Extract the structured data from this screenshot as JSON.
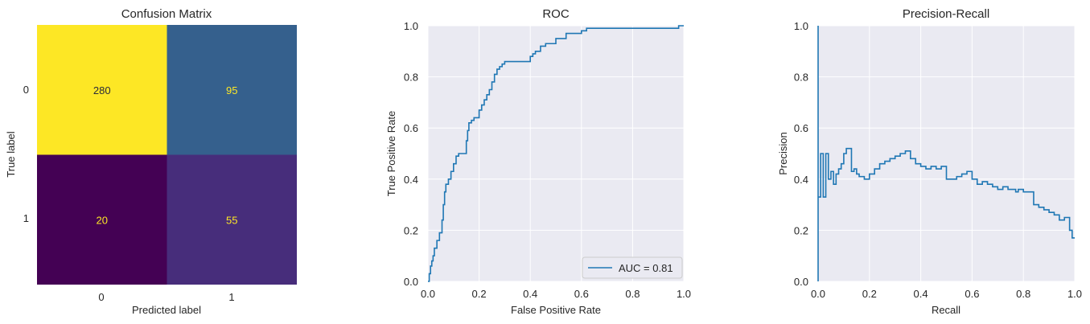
{
  "chart_data": [
    {
      "type": "heatmap",
      "title": "Confusion Matrix",
      "xlabel": "Predicted label",
      "ylabel": "True label",
      "x_tick_labels": [
        "0",
        "1"
      ],
      "y_tick_labels": [
        "0",
        "1"
      ],
      "matrix": [
        [
          280,
          95
        ],
        [
          20,
          55
        ]
      ],
      "cell_labels": [
        [
          "280",
          "95"
        ],
        [
          "20",
          "55"
        ]
      ],
      "colormap": "viridis",
      "cell_colors": [
        [
          "#fde725",
          "#35608d"
        ],
        [
          "#440154",
          "#472d7b"
        ]
      ],
      "cell_text_colors": [
        [
          "#2a2a3a",
          "#fde725"
        ],
        [
          "#fde725",
          "#fde725"
        ]
      ],
      "grid": false
    },
    {
      "type": "line",
      "title": "ROC",
      "xlabel": "False Positive Rate",
      "ylabel": "True Positive Rate",
      "xlim": [
        0,
        1
      ],
      "ylim": [
        0,
        1
      ],
      "x_ticks": [
        "0.0",
        "0.2",
        "0.4",
        "0.6",
        "0.8",
        "1.0"
      ],
      "y_ticks": [
        "0.0",
        "0.2",
        "0.4",
        "0.6",
        "0.8",
        "1.0"
      ],
      "grid": true,
      "legend_position": "lower-right",
      "series": [
        {
          "name": "AUC = 0.81",
          "color": "#1f77b4",
          "step": true,
          "x": [
            0.0,
            0.005,
            0.005,
            0.01,
            0.01,
            0.015,
            0.015,
            0.02,
            0.02,
            0.025,
            0.025,
            0.035,
            0.035,
            0.045,
            0.045,
            0.055,
            0.055,
            0.06,
            0.06,
            0.065,
            0.065,
            0.07,
            0.07,
            0.08,
            0.08,
            0.09,
            0.09,
            0.1,
            0.1,
            0.11,
            0.11,
            0.12,
            0.12,
            0.15,
            0.15,
            0.155,
            0.155,
            0.16,
            0.16,
            0.17,
            0.17,
            0.18,
            0.18,
            0.2,
            0.2,
            0.21,
            0.21,
            0.22,
            0.22,
            0.23,
            0.23,
            0.24,
            0.24,
            0.25,
            0.25,
            0.26,
            0.26,
            0.27,
            0.27,
            0.28,
            0.28,
            0.29,
            0.29,
            0.3,
            0.3,
            0.31,
            0.31,
            0.32,
            0.32,
            0.4,
            0.4,
            0.41,
            0.41,
            0.42,
            0.42,
            0.44,
            0.44,
            0.46,
            0.46,
            0.5,
            0.5,
            0.54,
            0.54,
            0.6,
            0.6,
            0.62,
            0.62,
            0.98,
            0.98,
            1.0,
            1.0
          ],
          "y": [
            0.0,
            0.0,
            0.03,
            0.03,
            0.06,
            0.06,
            0.08,
            0.08,
            0.1,
            0.1,
            0.13,
            0.13,
            0.16,
            0.16,
            0.19,
            0.19,
            0.24,
            0.24,
            0.3,
            0.3,
            0.35,
            0.35,
            0.38,
            0.38,
            0.4,
            0.4,
            0.43,
            0.43,
            0.46,
            0.46,
            0.49,
            0.49,
            0.5,
            0.5,
            0.55,
            0.55,
            0.59,
            0.59,
            0.62,
            0.62,
            0.63,
            0.63,
            0.64,
            0.64,
            0.67,
            0.67,
            0.69,
            0.69,
            0.71,
            0.71,
            0.73,
            0.73,
            0.75,
            0.75,
            0.78,
            0.78,
            0.81,
            0.81,
            0.83,
            0.83,
            0.84,
            0.84,
            0.85,
            0.85,
            0.86,
            0.86,
            0.86,
            0.86,
            0.86,
            0.86,
            0.88,
            0.88,
            0.89,
            0.89,
            0.9,
            0.9,
            0.92,
            0.92,
            0.93,
            0.93,
            0.95,
            0.95,
            0.97,
            0.97,
            0.98,
            0.98,
            0.99,
            0.99,
            1.0,
            1.0,
            1.0
          ]
        }
      ]
    },
    {
      "type": "line",
      "title": "Precision-Recall",
      "xlabel": "Recall",
      "ylabel": "Precision",
      "xlim": [
        0,
        1
      ],
      "ylim": [
        0,
        1
      ],
      "x_ticks": [
        "0.0",
        "0.2",
        "0.4",
        "0.6",
        "0.8",
        "1.0"
      ],
      "y_ticks": [
        "0.0",
        "0.2",
        "0.4",
        "0.6",
        "0.8",
        "1.0"
      ],
      "grid": true,
      "series": [
        {
          "color": "#1f77b4",
          "step": true,
          "x": [
            0.0,
            0.0,
            0.0,
            0.01,
            0.01,
            0.02,
            0.02,
            0.03,
            0.03,
            0.04,
            0.04,
            0.05,
            0.05,
            0.06,
            0.06,
            0.07,
            0.07,
            0.08,
            0.08,
            0.09,
            0.09,
            0.1,
            0.1,
            0.11,
            0.11,
            0.13,
            0.13,
            0.14,
            0.14,
            0.15,
            0.15,
            0.16,
            0.16,
            0.18,
            0.18,
            0.2,
            0.2,
            0.22,
            0.22,
            0.24,
            0.24,
            0.26,
            0.26,
            0.28,
            0.28,
            0.3,
            0.3,
            0.32,
            0.32,
            0.34,
            0.34,
            0.36,
            0.36,
            0.38,
            0.38,
            0.4,
            0.4,
            0.42,
            0.42,
            0.44,
            0.44,
            0.46,
            0.46,
            0.48,
            0.48,
            0.5,
            0.5,
            0.54,
            0.54,
            0.56,
            0.56,
            0.58,
            0.58,
            0.6,
            0.6,
            0.62,
            0.62,
            0.64,
            0.64,
            0.66,
            0.66,
            0.68,
            0.68,
            0.7,
            0.7,
            0.72,
            0.72,
            0.74,
            0.74,
            0.77,
            0.77,
            0.78,
            0.78,
            0.8,
            0.8,
            0.84,
            0.84,
            0.86,
            0.86,
            0.88,
            0.88,
            0.9,
            0.9,
            0.92,
            0.92,
            0.94,
            0.94,
            0.96,
            0.96,
            0.98,
            0.98,
            0.99,
            0.99,
            1.0
          ],
          "y": [
            0.0,
            1.0,
            0.33,
            0.33,
            0.5,
            0.5,
            0.33,
            0.33,
            0.5,
            0.5,
            0.4,
            0.4,
            0.43,
            0.43,
            0.38,
            0.38,
            0.42,
            0.42,
            0.44,
            0.44,
            0.46,
            0.46,
            0.5,
            0.5,
            0.52,
            0.52,
            0.43,
            0.43,
            0.44,
            0.44,
            0.42,
            0.42,
            0.41,
            0.41,
            0.4,
            0.4,
            0.42,
            0.42,
            0.44,
            0.44,
            0.46,
            0.46,
            0.47,
            0.47,
            0.48,
            0.48,
            0.49,
            0.49,
            0.5,
            0.5,
            0.51,
            0.51,
            0.48,
            0.48,
            0.46,
            0.46,
            0.45,
            0.45,
            0.44,
            0.44,
            0.45,
            0.45,
            0.44,
            0.44,
            0.45,
            0.45,
            0.4,
            0.4,
            0.41,
            0.41,
            0.42,
            0.42,
            0.43,
            0.43,
            0.4,
            0.4,
            0.38,
            0.38,
            0.39,
            0.39,
            0.38,
            0.38,
            0.37,
            0.37,
            0.36,
            0.36,
            0.37,
            0.37,
            0.36,
            0.36,
            0.35,
            0.35,
            0.36,
            0.36,
            0.35,
            0.35,
            0.3,
            0.3,
            0.29,
            0.29,
            0.28,
            0.28,
            0.27,
            0.27,
            0.26,
            0.26,
            0.24,
            0.24,
            0.25,
            0.25,
            0.2,
            0.2,
            0.17,
            0.17
          ]
        }
      ]
    }
  ]
}
